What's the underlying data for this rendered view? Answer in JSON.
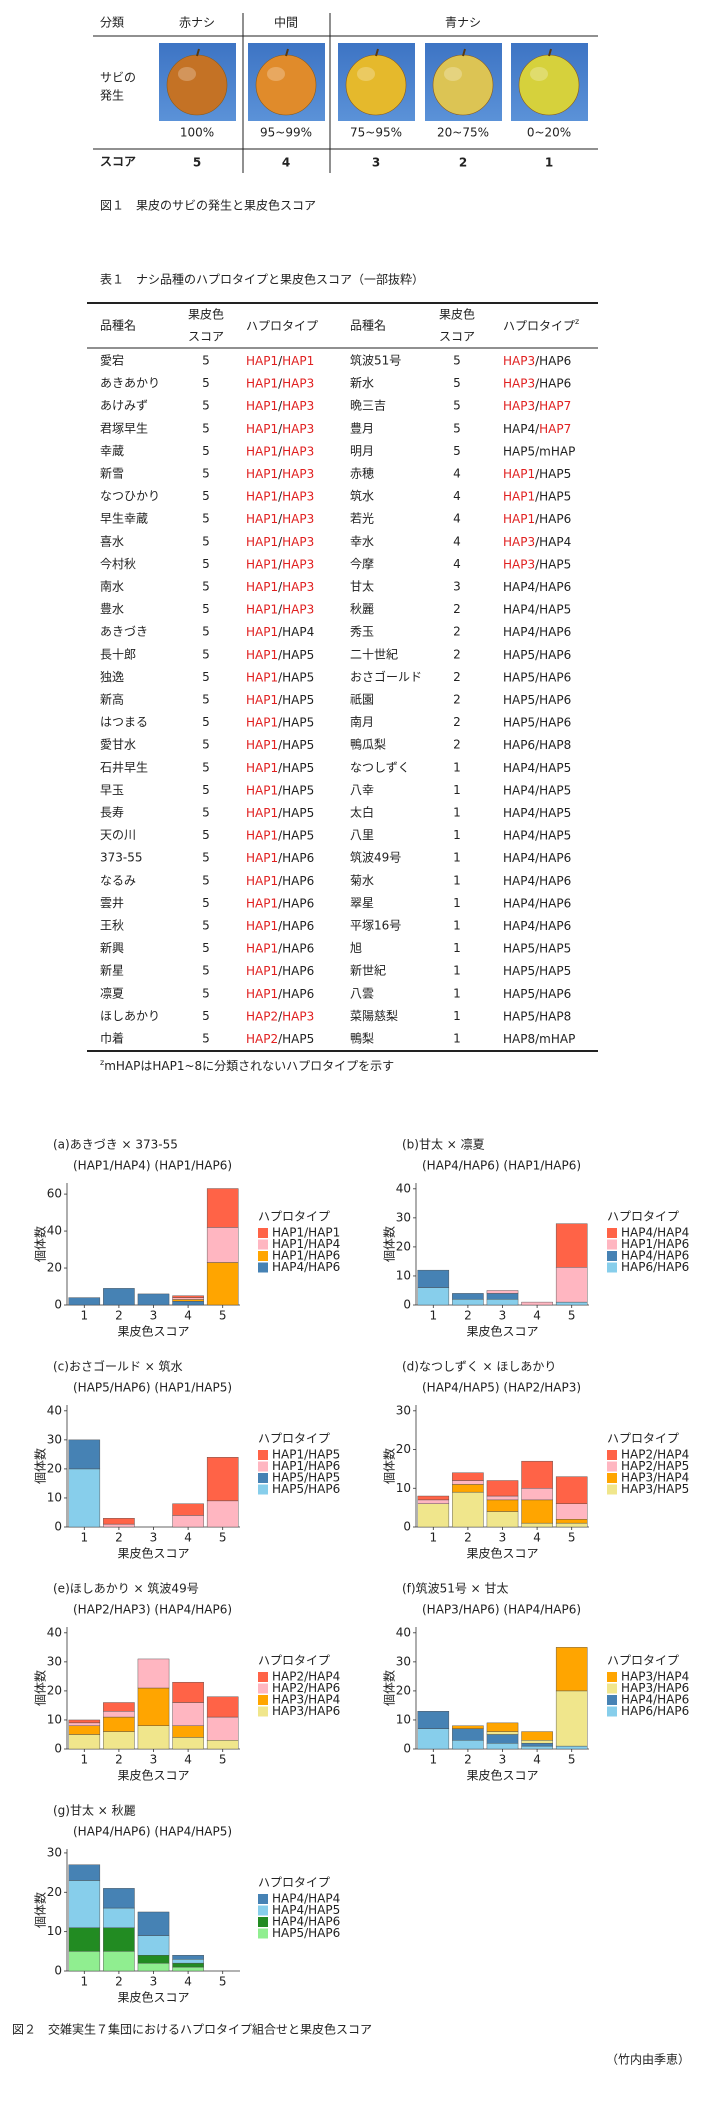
{
  "fig1": {
    "header": [
      "分類",
      "赤ナシ",
      "中間",
      "青ナシ"
    ],
    "row_label": [
      "サビの",
      "発生"
    ],
    "percents": [
      "100%",
      "95~99%",
      "75~95%",
      "20~75%",
      "0~20%"
    ],
    "score_label": "スコア",
    "scores": [
      5,
      4,
      3,
      2,
      1
    ],
    "score_color": "#e8541e",
    "caption": "図１　果皮のサビの発生と果皮色スコア"
  },
  "table1": {
    "title": "表１　ナシ品種のハプロタイプと果皮色スコア（一部抜粋）",
    "header": {
      "name": "品種名",
      "score": [
        "果皮色",
        "スコア"
      ],
      "hap": "ハプロタイプ",
      "hap_note": "z"
    },
    "hap_separator": "/",
    "highlight_color": "#e02020",
    "left": [
      [
        "愛宕",
        5,
        "HAP1",
        "HAP1",
        1,
        1
      ],
      [
        "あきあかり",
        5,
        "HAP1",
        "HAP3",
        1,
        1
      ],
      [
        "あけみず",
        5,
        "HAP1",
        "HAP3",
        1,
        1
      ],
      [
        "君塚早生",
        5,
        "HAP1",
        "HAP3",
        1,
        1
      ],
      [
        "幸蔵",
        5,
        "HAP1",
        "HAP3",
        1,
        1
      ],
      [
        "新雪",
        5,
        "HAP1",
        "HAP3",
        1,
        1
      ],
      [
        "なつひかり",
        5,
        "HAP1",
        "HAP3",
        1,
        1
      ],
      [
        "早生幸蔵",
        5,
        "HAP1",
        "HAP3",
        1,
        1
      ],
      [
        "喜水",
        5,
        "HAP1",
        "HAP3",
        1,
        1
      ],
      [
        "今村秋",
        5,
        "HAP1",
        "HAP3",
        1,
        1
      ],
      [
        "南水",
        5,
        "HAP1",
        "HAP3",
        1,
        1
      ],
      [
        "豊水",
        5,
        "HAP1",
        "HAP3",
        1,
        1
      ],
      [
        "あきづき",
        5,
        "HAP1",
        "HAP4",
        1,
        0
      ],
      [
        "長十郎",
        5,
        "HAP1",
        "HAP5",
        1,
        0
      ],
      [
        "独逸",
        5,
        "HAP1",
        "HAP5",
        1,
        0
      ],
      [
        "新高",
        5,
        "HAP1",
        "HAP5",
        1,
        0
      ],
      [
        "はつまる",
        5,
        "HAP1",
        "HAP5",
        1,
        0
      ],
      [
        "愛甘水",
        5,
        "HAP1",
        "HAP5",
        1,
        0
      ],
      [
        "石井早生",
        5,
        "HAP1",
        "HAP5",
        1,
        0
      ],
      [
        "早玉",
        5,
        "HAP1",
        "HAP5",
        1,
        0
      ],
      [
        "長寿",
        5,
        "HAP1",
        "HAP5",
        1,
        0
      ],
      [
        "天の川",
        5,
        "HAP1",
        "HAP5",
        1,
        0
      ],
      [
        "373-55",
        5,
        "HAP1",
        "HAP6",
        1,
        0
      ],
      [
        "なるみ",
        5,
        "HAP1",
        "HAP6",
        1,
        0
      ],
      [
        "雲井",
        5,
        "HAP1",
        "HAP6",
        1,
        0
      ],
      [
        "王秋",
        5,
        "HAP1",
        "HAP6",
        1,
        0
      ],
      [
        "新興",
        5,
        "HAP1",
        "HAP6",
        1,
        0
      ],
      [
        "新星",
        5,
        "HAP1",
        "HAP6",
        1,
        0
      ],
      [
        "凛夏",
        5,
        "HAP1",
        "HAP6",
        1,
        0
      ],
      [
        "ほしあかり",
        5,
        "HAP2",
        "HAP3",
        1,
        1
      ],
      [
        "巾着",
        5,
        "HAP2",
        "HAP5",
        1,
        0
      ]
    ],
    "right": [
      [
        "筑波51号",
        5,
        "HAP3",
        "HAP6",
        1,
        0
      ],
      [
        "新水",
        5,
        "HAP3",
        "HAP6",
        1,
        0
      ],
      [
        "晩三吉",
        5,
        "HAP3",
        "HAP7",
        1,
        1
      ],
      [
        "豊月",
        5,
        "HAP4",
        "HAP7",
        0,
        1
      ],
      [
        "明月",
        5,
        "HAP5",
        "mHAP",
        0,
        0
      ],
      [
        "赤穂",
        4,
        "HAP1",
        "HAP5",
        1,
        0
      ],
      [
        "筑水",
        4,
        "HAP1",
        "HAP5",
        1,
        0
      ],
      [
        "若光",
        4,
        "HAP1",
        "HAP6",
        1,
        0
      ],
      [
        "幸水",
        4,
        "HAP3",
        "HAP4",
        1,
        0
      ],
      [
        "今摩",
        4,
        "HAP3",
        "HAP5",
        1,
        0
      ],
      [
        "甘太",
        3,
        "HAP4",
        "HAP6",
        0,
        0
      ],
      [
        "秋麗",
        2,
        "HAP4",
        "HAP5",
        0,
        0
      ],
      [
        "秀玉",
        2,
        "HAP4",
        "HAP6",
        0,
        0
      ],
      [
        "二十世紀",
        2,
        "HAP5",
        "HAP6",
        0,
        0
      ],
      [
        "おさゴールド",
        2,
        "HAP5",
        "HAP6",
        0,
        0
      ],
      [
        "祇園",
        2,
        "HAP5",
        "HAP6",
        0,
        0
      ],
      [
        "南月",
        2,
        "HAP5",
        "HAP6",
        0,
        0
      ],
      [
        "鴨瓜梨",
        2,
        "HAP6",
        "HAP8",
        0,
        0
      ],
      [
        "なつしずく",
        1,
        "HAP4",
        "HAP5",
        0,
        0
      ],
      [
        "八幸",
        1,
        "HAP4",
        "HAP5",
        0,
        0
      ],
      [
        "太白",
        1,
        "HAP4",
        "HAP5",
        0,
        0
      ],
      [
        "八里",
        1,
        "HAP4",
        "HAP5",
        0,
        0
      ],
      [
        "筑波49号",
        1,
        "HAP4",
        "HAP6",
        0,
        0
      ],
      [
        "菊水",
        1,
        "HAP4",
        "HAP6",
        0,
        0
      ],
      [
        "翠星",
        1,
        "HAP4",
        "HAP6",
        0,
        0
      ],
      [
        "平塚16号",
        1,
        "HAP4",
        "HAP6",
        0,
        0
      ],
      [
        "旭",
        1,
        "HAP5",
        "HAP5",
        0,
        0
      ],
      [
        "新世紀",
        1,
        "HAP5",
        "HAP5",
        0,
        0
      ],
      [
        "八雲",
        1,
        "HAP5",
        "HAP6",
        0,
        0
      ],
      [
        "菜陽慈梨",
        1,
        "HAP5",
        "HAP8",
        0,
        0
      ],
      [
        "鴨梨",
        1,
        "HAP8",
        "mHAP",
        0,
        0
      ]
    ],
    "footnote": "mHAPはHAP1~8に分類されないハプロタイプを示す"
  },
  "chart_data": [
    {
      "type": "bar",
      "stacked": true,
      "title": "(a)あきづき × 373-55",
      "subtitle": "(HAP1/HAP4) (HAP1/HAP6)",
      "x_label": "果皮色スコア",
      "y_label": "個体数",
      "legend_title": "ハプロタイプ",
      "categories": [
        "1",
        "2",
        "3",
        "4",
        "5"
      ],
      "ylim": [
        0,
        66
      ],
      "yticks": [
        0,
        20,
        40,
        60
      ],
      "series": [
        {
          "name": "HAP1/HAP1",
          "color": "#ff6347",
          "values": [
            0,
            0,
            0,
            1,
            21
          ]
        },
        {
          "name": "HAP1/HAP4",
          "color": "#ffb6c1",
          "values": [
            0,
            0,
            0,
            1,
            19
          ]
        },
        {
          "name": "HAP1/HAP6",
          "color": "#ffa500",
          "values": [
            0,
            0,
            0,
            1,
            23
          ]
        },
        {
          "name": "HAP4/HAP6",
          "color": "#4682b4",
          "values": [
            4,
            9,
            6,
            2,
            0
          ]
        }
      ]
    },
    {
      "type": "bar",
      "stacked": true,
      "title": "(b)甘太 × 凛夏",
      "subtitle": "(HAP4/HAP6) (HAP1/HAP6)",
      "x_label": "果皮色スコア",
      "y_label": "個体数",
      "legend_title": "ハプロタイプ",
      "categories": [
        "1",
        "2",
        "3",
        "4",
        "5"
      ],
      "ylim": [
        0,
        42
      ],
      "yticks": [
        0,
        10,
        20,
        30,
        40
      ],
      "series": [
        {
          "name": "HAP4/HAP4",
          "color": "#ff6347",
          "values": [
            0,
            0,
            0,
            0,
            15
          ]
        },
        {
          "name": "HAP1/HAP6",
          "color": "#ffb6c1",
          "values": [
            0,
            0,
            1,
            1,
            12
          ]
        },
        {
          "name": "HAP4/HAP6",
          "color": "#4682b4",
          "values": [
            6,
            2,
            2,
            0,
            0
          ]
        },
        {
          "name": "HAP6/HAP6",
          "color": "#87ceeb",
          "values": [
            6,
            2,
            2,
            0,
            1
          ]
        }
      ]
    },
    {
      "type": "bar",
      "stacked": true,
      "title": "(c)おさゴールド × 筑水",
      "subtitle": "(HAP5/HAP6) (HAP1/HAP5)",
      "x_label": "果皮色スコア",
      "y_label": "個体数",
      "legend_title": "ハプロタイプ",
      "categories": [
        "1",
        "2",
        "3",
        "4",
        "5"
      ],
      "ylim": [
        0,
        42
      ],
      "yticks": [
        0,
        10,
        20,
        30,
        40
      ],
      "series": [
        {
          "name": "HAP1/HAP5",
          "color": "#ff6347",
          "values": [
            0,
            2,
            0,
            4,
            15
          ]
        },
        {
          "name": "HAP1/HAP6",
          "color": "#ffb6c1",
          "values": [
            0,
            1,
            0,
            4,
            9
          ]
        },
        {
          "name": "HAP5/HAP5",
          "color": "#4682b4",
          "values": [
            10,
            0,
            0,
            0,
            0
          ]
        },
        {
          "name": "HAP5/HAP6",
          "color": "#87ceeb",
          "values": [
            20,
            0,
            0,
            0,
            0
          ]
        }
      ]
    },
    {
      "type": "bar",
      "stacked": true,
      "title": "(d)なつしずく × ほしあかり",
      "subtitle": "(HAP4/HAP5) (HAP2/HAP3)",
      "x_label": "果皮色スコア",
      "y_label": "個体数",
      "legend_title": "ハプロタイプ",
      "categories": [
        "1",
        "2",
        "3",
        "4",
        "5"
      ],
      "ylim": [
        0,
        31.5
      ],
      "yticks": [
        0,
        10,
        20,
        30
      ],
      "series": [
        {
          "name": "HAP2/HAP4",
          "color": "#ff6347",
          "values": [
            1,
            2,
            4,
            7,
            7
          ]
        },
        {
          "name": "HAP2/HAP5",
          "color": "#ffb6c1",
          "values": [
            1,
            1,
            1,
            3,
            4
          ]
        },
        {
          "name": "HAP3/HAP4",
          "color": "#ffa500",
          "values": [
            0,
            2,
            3,
            6,
            1
          ]
        },
        {
          "name": "HAP3/HAP5",
          "color": "#f0e68c",
          "values": [
            6,
            9,
            4,
            1,
            1
          ]
        }
      ]
    },
    {
      "type": "bar",
      "stacked": true,
      "title": "(e)ほしあかり × 筑波49号",
      "subtitle": "(HAP2/HAP3) (HAP4/HAP6)",
      "x_label": "果皮色スコア",
      "y_label": "個体数",
      "legend_title": "ハプロタイプ",
      "categories": [
        "1",
        "2",
        "3",
        "4",
        "5"
      ],
      "ylim": [
        0,
        42
      ],
      "yticks": [
        0,
        10,
        20,
        30,
        40
      ],
      "series": [
        {
          "name": "HAP2/HAP4",
          "color": "#ff6347",
          "values": [
            1,
            3,
            0,
            7,
            7
          ]
        },
        {
          "name": "HAP2/HAP6",
          "color": "#ffb6c1",
          "values": [
            1,
            2,
            10,
            8,
            8
          ]
        },
        {
          "name": "HAP3/HAP4",
          "color": "#ffa500",
          "values": [
            3,
            5,
            13,
            4,
            0
          ]
        },
        {
          "name": "HAP3/HAP6",
          "color": "#f0e68c",
          "values": [
            5,
            6,
            8,
            4,
            3
          ]
        }
      ]
    },
    {
      "type": "bar",
      "stacked": true,
      "title": "(f)筑波51号 × 甘太",
      "subtitle": "(HAP3/HAP6) (HAP4/HAP6)",
      "x_label": "果皮色スコア",
      "y_label": "個体数",
      "legend_title": "ハプロタイプ",
      "categories": [
        "1",
        "2",
        "3",
        "4",
        "5"
      ],
      "ylim": [
        0,
        42
      ],
      "yticks": [
        0,
        10,
        20,
        30,
        40
      ],
      "series": [
        {
          "name": "HAP3/HAP4",
          "color": "#ffa500",
          "values": [
            0,
            1,
            3,
            3,
            15
          ]
        },
        {
          "name": "HAP3/HAP6",
          "color": "#f0e68c",
          "values": [
            0,
            0,
            1,
            1,
            19
          ]
        },
        {
          "name": "HAP4/HAP6",
          "color": "#4682b4",
          "values": [
            6,
            4,
            3,
            1,
            0
          ]
        },
        {
          "name": "HAP6/HAP6",
          "color": "#87ceeb",
          "values": [
            7,
            3,
            2,
            1,
            1
          ]
        }
      ]
    },
    {
      "type": "bar",
      "stacked": true,
      "title": "(g)甘太 × 秋麗",
      "subtitle": "(HAP4/HAP6) (HAP4/HAP5)",
      "x_label": "果皮色スコア",
      "y_label": "個体数",
      "legend_title": "ハプロタイプ",
      "categories": [
        "1",
        "2",
        "3",
        "4",
        "5"
      ],
      "ylim": [
        0,
        31
      ],
      "yticks": [
        0,
        10,
        20,
        30
      ],
      "series": [
        {
          "name": "HAP4/HAP4",
          "color": "#4682b4",
          "values": [
            4,
            5,
            6,
            1,
            0
          ]
        },
        {
          "name": "HAP4/HAP5",
          "color": "#87ceeb",
          "values": [
            12,
            5,
            5,
            1,
            0
          ]
        },
        {
          "name": "HAP4/HAP6",
          "color": "#228b22",
          "values": [
            6,
            6,
            2,
            1,
            0
          ]
        },
        {
          "name": "HAP5/HAP6",
          "color": "#90ee90",
          "values": [
            5,
            5,
            2,
            1,
            0
          ]
        }
      ]
    }
  ],
  "figure2": {
    "caption": "図２　交雑実生７集団におけるハプロタイプ組合せと果皮色スコア",
    "author": "（竹内由季恵）"
  }
}
